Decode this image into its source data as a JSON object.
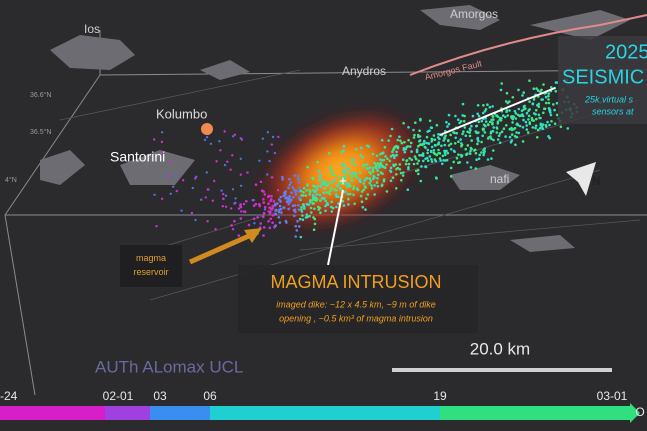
{
  "map": {
    "places": {
      "ios": "Ios",
      "amorgos": "Amorgos",
      "anydros": "Anydros",
      "amorgos_fault": "Amorgos Fault",
      "kolumbo": "Kolumbo",
      "santorini": "Santorini",
      "anafi": "nafi"
    },
    "lat_labels": [
      "36.6°N",
      "36.5°N",
      "4°N"
    ],
    "north": "N",
    "headline": {
      "year": "2025",
      "word": "SEISMIC",
      "sub1": "25k virtual s",
      "sub2": "sensors at"
    },
    "reservoir": "magma\nreservoir",
    "intrusion": {
      "title": "MAGMA INTRUSION",
      "line1": "imaged dike: ~12 x 4.5 km, ~9 m of  dike",
      "line2": "opening , ~0.5 km³ of magma intrusion"
    },
    "credits": "AUTh ALomax UCL",
    "scale": "20.0 km",
    "timeline": [
      "-24",
      "02-01",
      "03",
      "06",
      "19",
      "03-01",
      "O"
    ]
  }
}
